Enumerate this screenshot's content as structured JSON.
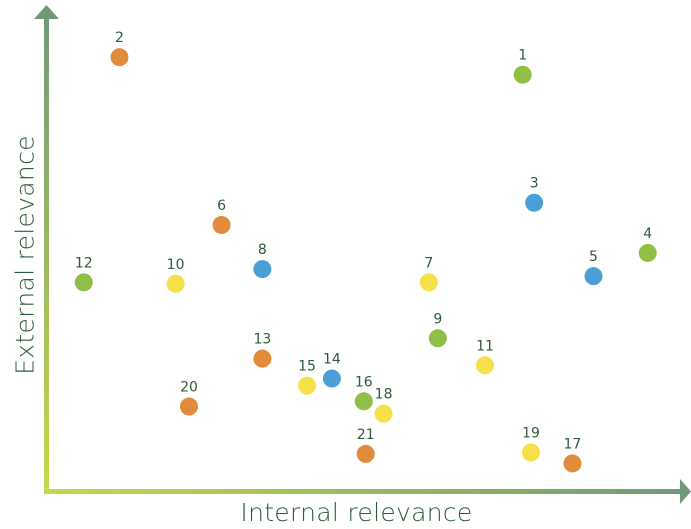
{
  "chart_data": {
    "type": "scatter",
    "title": "",
    "xlabel": "Internal relevance",
    "ylabel": "External relevance",
    "grid": false,
    "legend": "none",
    "xlim": [
      0,
      100
    ],
    "ylim": [
      0,
      100
    ],
    "colors": {
      "orange": "#e38b3c",
      "green": "#8fbf45",
      "blue": "#4a9fd6",
      "yellow": "#f5e04a",
      "axis_start": "#c8d84a",
      "axis_end": "#6e9a78",
      "label_text": "#2f5a3a"
    },
    "points": [
      {
        "label": "1",
        "x": 74.4,
        "y": 87.4,
        "color": "green"
      },
      {
        "label": "2",
        "x": 11.2,
        "y": 91.1,
        "color": "orange"
      },
      {
        "label": "3",
        "x": 76.2,
        "y": 60.4,
        "color": "blue"
      },
      {
        "label": "4",
        "x": 94.0,
        "y": 49.8,
        "color": "green"
      },
      {
        "label": "5",
        "x": 85.5,
        "y": 44.9,
        "color": "blue"
      },
      {
        "label": "6",
        "x": 27.2,
        "y": 55.7,
        "color": "orange"
      },
      {
        "label": "7",
        "x": 59.7,
        "y": 43.6,
        "color": "yellow"
      },
      {
        "label": "8",
        "x": 33.6,
        "y": 46.4,
        "color": "blue"
      },
      {
        "label": "9",
        "x": 61.1,
        "y": 31.8,
        "color": "green"
      },
      {
        "label": "10",
        "x": 20.0,
        "y": 43.3,
        "color": "yellow"
      },
      {
        "label": "11",
        "x": 68.5,
        "y": 26.1,
        "color": "yellow"
      },
      {
        "label": "12",
        "x": 5.6,
        "y": 43.6,
        "color": "green"
      },
      {
        "label": "13",
        "x": 33.6,
        "y": 27.5,
        "color": "orange"
      },
      {
        "label": "14",
        "x": 44.5,
        "y": 23.3,
        "color": "blue"
      },
      {
        "label": "15",
        "x": 40.6,
        "y": 21.8,
        "color": "yellow"
      },
      {
        "label": "16",
        "x": 49.5,
        "y": 18.5,
        "color": "green"
      },
      {
        "label": "17",
        "x": 82.2,
        "y": 5.4,
        "color": "orange"
      },
      {
        "label": "18",
        "x": 52.6,
        "y": 15.9,
        "color": "yellow"
      },
      {
        "label": "19",
        "x": 75.7,
        "y": 7.7,
        "color": "yellow"
      },
      {
        "label": "20",
        "x": 22.1,
        "y": 17.4,
        "color": "orange"
      },
      {
        "label": "21",
        "x": 49.8,
        "y": 7.4,
        "color": "orange"
      }
    ]
  }
}
